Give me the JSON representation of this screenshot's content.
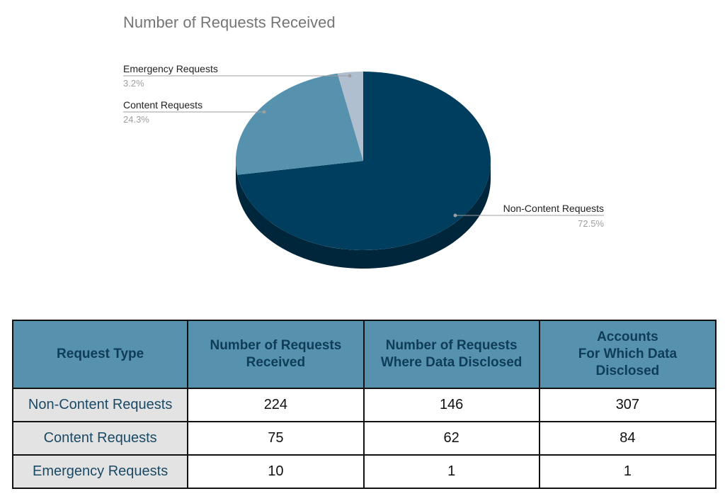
{
  "chart_data": {
    "type": "pie",
    "title": "Number of Requests Received",
    "slices": [
      {
        "label": "Non-Content Requests",
        "value": 224,
        "pct_label": "72.5%",
        "color": "#003e5f"
      },
      {
        "label": "Content Requests",
        "value": 75,
        "pct_label": "24.3%",
        "color": "#5692ad"
      },
      {
        "label": "Emergency Requests",
        "value": 10,
        "pct_label": "3.2%",
        "color": "#b0bfd0"
      }
    ],
    "depth_color": "#00263b",
    "style": "3d",
    "legend": "callouts"
  },
  "table": {
    "header_bg": "#5692ad",
    "header_color": "#0f3c57",
    "label_bg": "#e3e3e3",
    "headers": [
      "Request Type",
      "Number of Requests\nReceived",
      "Number of Requests\nWhere Data Disclosed",
      "Accounts\nFor Which Data\nDisclosed"
    ],
    "rows": [
      {
        "type": "Non-Content Requests",
        "received": "224",
        "disclosed": "146",
        "accounts": "307"
      },
      {
        "type": "Content Requests",
        "received": "75",
        "disclosed": "62",
        "accounts": "84"
      },
      {
        "type": "Emergency Requests",
        "received": "10",
        "disclosed": "1",
        "accounts": "1"
      }
    ]
  }
}
